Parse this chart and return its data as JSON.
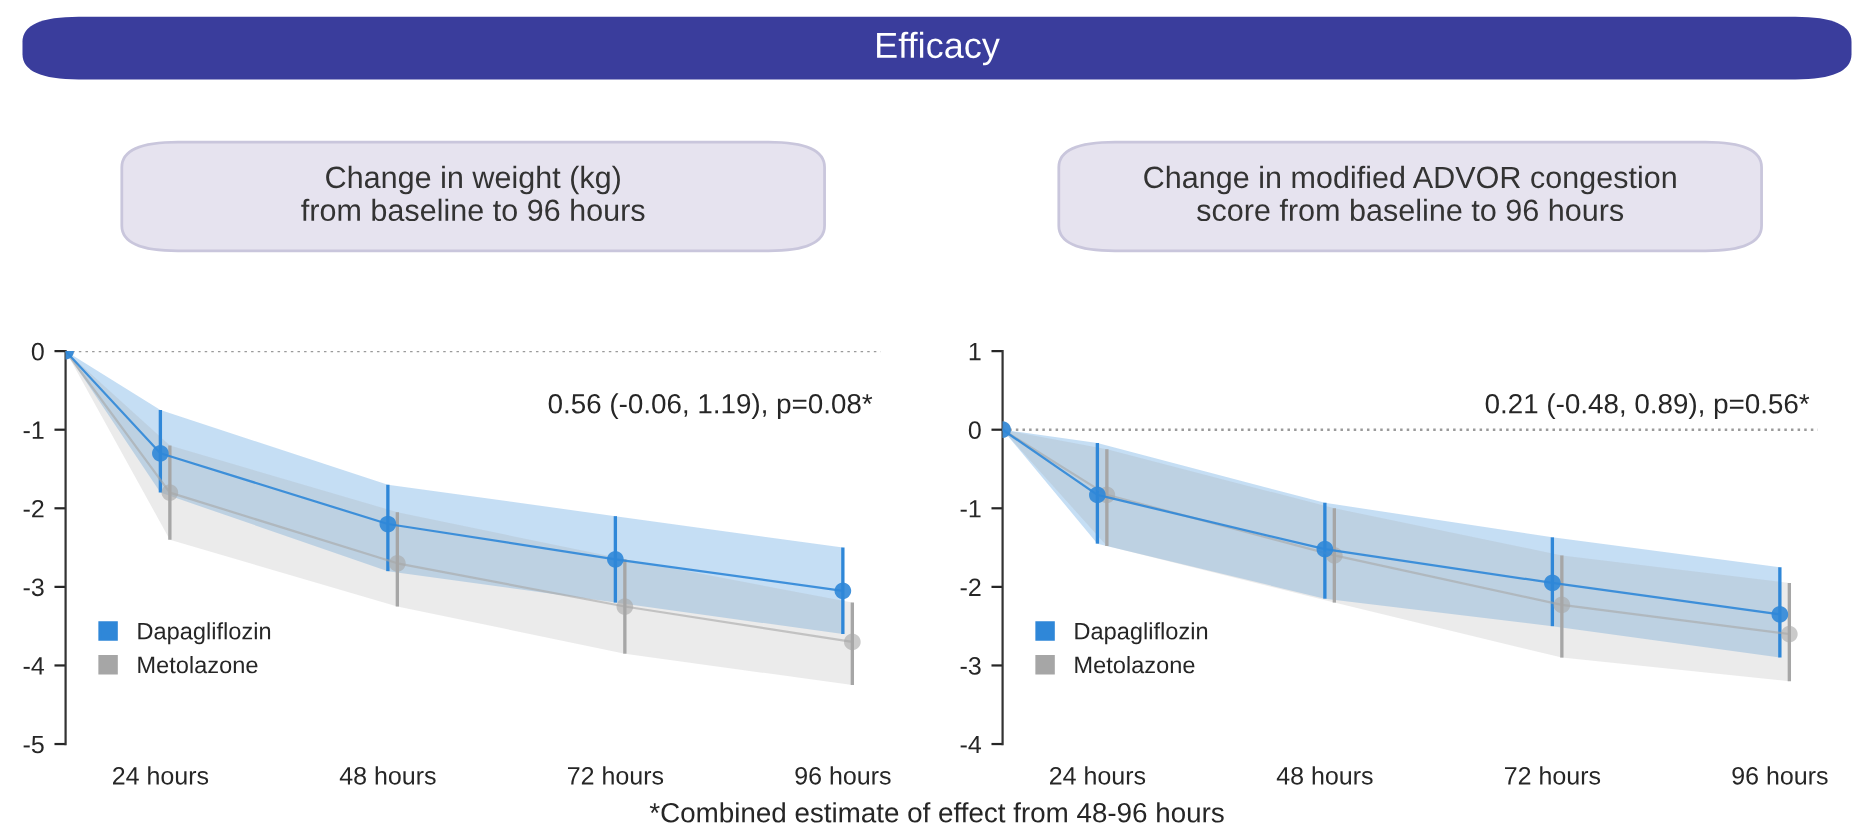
{
  "chart_data": [
    {
      "type": "line",
      "title": "Change in weight (kg)\nfrom baseline to 96 hours",
      "annotations": [
        "Efficacy",
        "0.56 (-0.06, 1.19), p=0.08*",
        "*Combined estimate of effect from 48-96 hours"
      ],
      "xlim": [
        14,
        100
      ],
      "xticks": [
        {
          "value": 24,
          "label": "24 hours"
        },
        {
          "value": 48,
          "label": "48 hours"
        },
        {
          "value": 72,
          "label": "72 hours"
        },
        {
          "value": 96,
          "label": "96 hours"
        }
      ],
      "ylim": [
        -5,
        0
      ],
      "yticks": [
        -5,
        -4,
        -3,
        -2,
        -1,
        0
      ],
      "grid": false,
      "legend": "bottom left",
      "marker": "circle",
      "line_style": "solid",
      "ref_lines": [
        {
          "axis": "y",
          "value": 0,
          "color": "#9a9a9a",
          "line_style": "dotted"
        }
      ],
      "series": [
        {
          "name": "Dapagliflozin",
          "color": "#2f87d8",
          "x": [
            14,
            24,
            48,
            72,
            96
          ],
          "values": [
            0,
            -1.3,
            -2.2,
            -2.65,
            -3.05
          ],
          "errors": [
            null,
            [
              -1.8,
              -0.75
            ],
            [
              -2.8,
              -1.7
            ],
            [
              -3.2,
              -2.1
            ],
            [
              -3.6,
              -2.5
            ]
          ],
          "lower": [
            0,
            -1.8,
            -2.8,
            -3.2,
            -3.6
          ],
          "upper": [
            0,
            -0.75,
            -1.7,
            -2.1,
            -2.5
          ]
        },
        {
          "name": "Metolazone",
          "color": "#a6a6a6",
          "x": [
            14,
            25,
            49,
            73,
            97
          ],
          "values": [
            0,
            -1.8,
            -2.7,
            -3.25,
            -3.7
          ],
          "errors": [
            null,
            [
              -2.4,
              -1.2
            ],
            [
              -3.25,
              -2.05
            ],
            [
              -3.85,
              -2.65
            ],
            [
              -4.25,
              -3.2
            ]
          ],
          "lower": [
            0,
            -2.4,
            -3.25,
            -3.85,
            -4.25
          ],
          "upper": [
            0,
            -1.2,
            -2.05,
            -2.65,
            -3.2
          ]
        }
      ]
    },
    {
      "type": "line",
      "title": "Change in modified ADVOR congestion\nscore from baseline to 96 hours",
      "annotations": [
        "0.21 (-0.48, 0.89), p=0.56*"
      ],
      "xlim": [
        14,
        100
      ],
      "xticks": [
        {
          "value": 24,
          "label": "24 hours"
        },
        {
          "value": 48,
          "label": "48 hours"
        },
        {
          "value": 72,
          "label": "72 hours"
        },
        {
          "value": 96,
          "label": "96 hours"
        }
      ],
      "ylim": [
        -4,
        1
      ],
      "yticks": [
        -4,
        -3,
        -2,
        -1,
        0,
        1
      ],
      "grid": false,
      "legend": "bottom left",
      "marker": "circle",
      "line_style": "solid",
      "ref_lines": [
        {
          "axis": "y",
          "value": 0,
          "color": "#9a9a9a",
          "line_style": "dotted"
        }
      ],
      "series": [
        {
          "name": "Dapagliflozin",
          "color": "#2f87d8",
          "x": [
            14,
            24,
            48,
            72,
            96
          ],
          "values": [
            0,
            -0.83,
            -1.52,
            -1.95,
            -2.35
          ],
          "errors": [
            null,
            [
              -1.45,
              -0.17
            ],
            [
              -2.15,
              -0.93
            ],
            [
              -2.5,
              -1.37
            ],
            [
              -2.9,
              -1.75
            ]
          ],
          "lower": [
            0,
            -1.45,
            -2.15,
            -2.5,
            -2.9
          ],
          "upper": [
            0,
            -0.17,
            -0.93,
            -1.37,
            -1.75
          ]
        },
        {
          "name": "Metolazone",
          "color": "#a6a6a6",
          "x": [
            14,
            25,
            49,
            73,
            97
          ],
          "values": [
            0,
            -0.83,
            -1.6,
            -2.23,
            -2.6
          ],
          "errors": [
            null,
            [
              -1.48,
              -0.25
            ],
            [
              -2.2,
              -1.0
            ],
            [
              -2.9,
              -1.6
            ],
            [
              -3.2,
              -1.95
            ]
          ],
          "lower": [
            0,
            -1.48,
            -2.2,
            -2.9,
            -3.2
          ],
          "upper": [
            0,
            -0.25,
            -1.0,
            -1.6,
            -1.95
          ]
        }
      ]
    }
  ]
}
